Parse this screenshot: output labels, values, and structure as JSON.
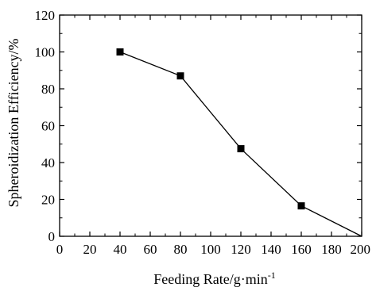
{
  "chart_data": {
    "type": "line",
    "title": "",
    "xlabel": "Feeding Rate/g·min",
    "xlabel_superscript": "-1",
    "ylabel": "Spheroidization Efficiency/%",
    "xlim": [
      0,
      200
    ],
    "ylim": [
      0,
      120
    ],
    "xticks": [
      0,
      20,
      40,
      60,
      80,
      100,
      120,
      140,
      160,
      180,
      200
    ],
    "yticks": [
      0,
      20,
      40,
      60,
      80,
      100,
      120
    ],
    "grid": false,
    "legend": "none",
    "series": [
      {
        "marker": "square",
        "color": "#000000",
        "x": [
          40,
          80,
          120,
          160,
          200
        ],
        "y": [
          100,
          87,
          47.5,
          16.5,
          0
        ]
      }
    ]
  }
}
